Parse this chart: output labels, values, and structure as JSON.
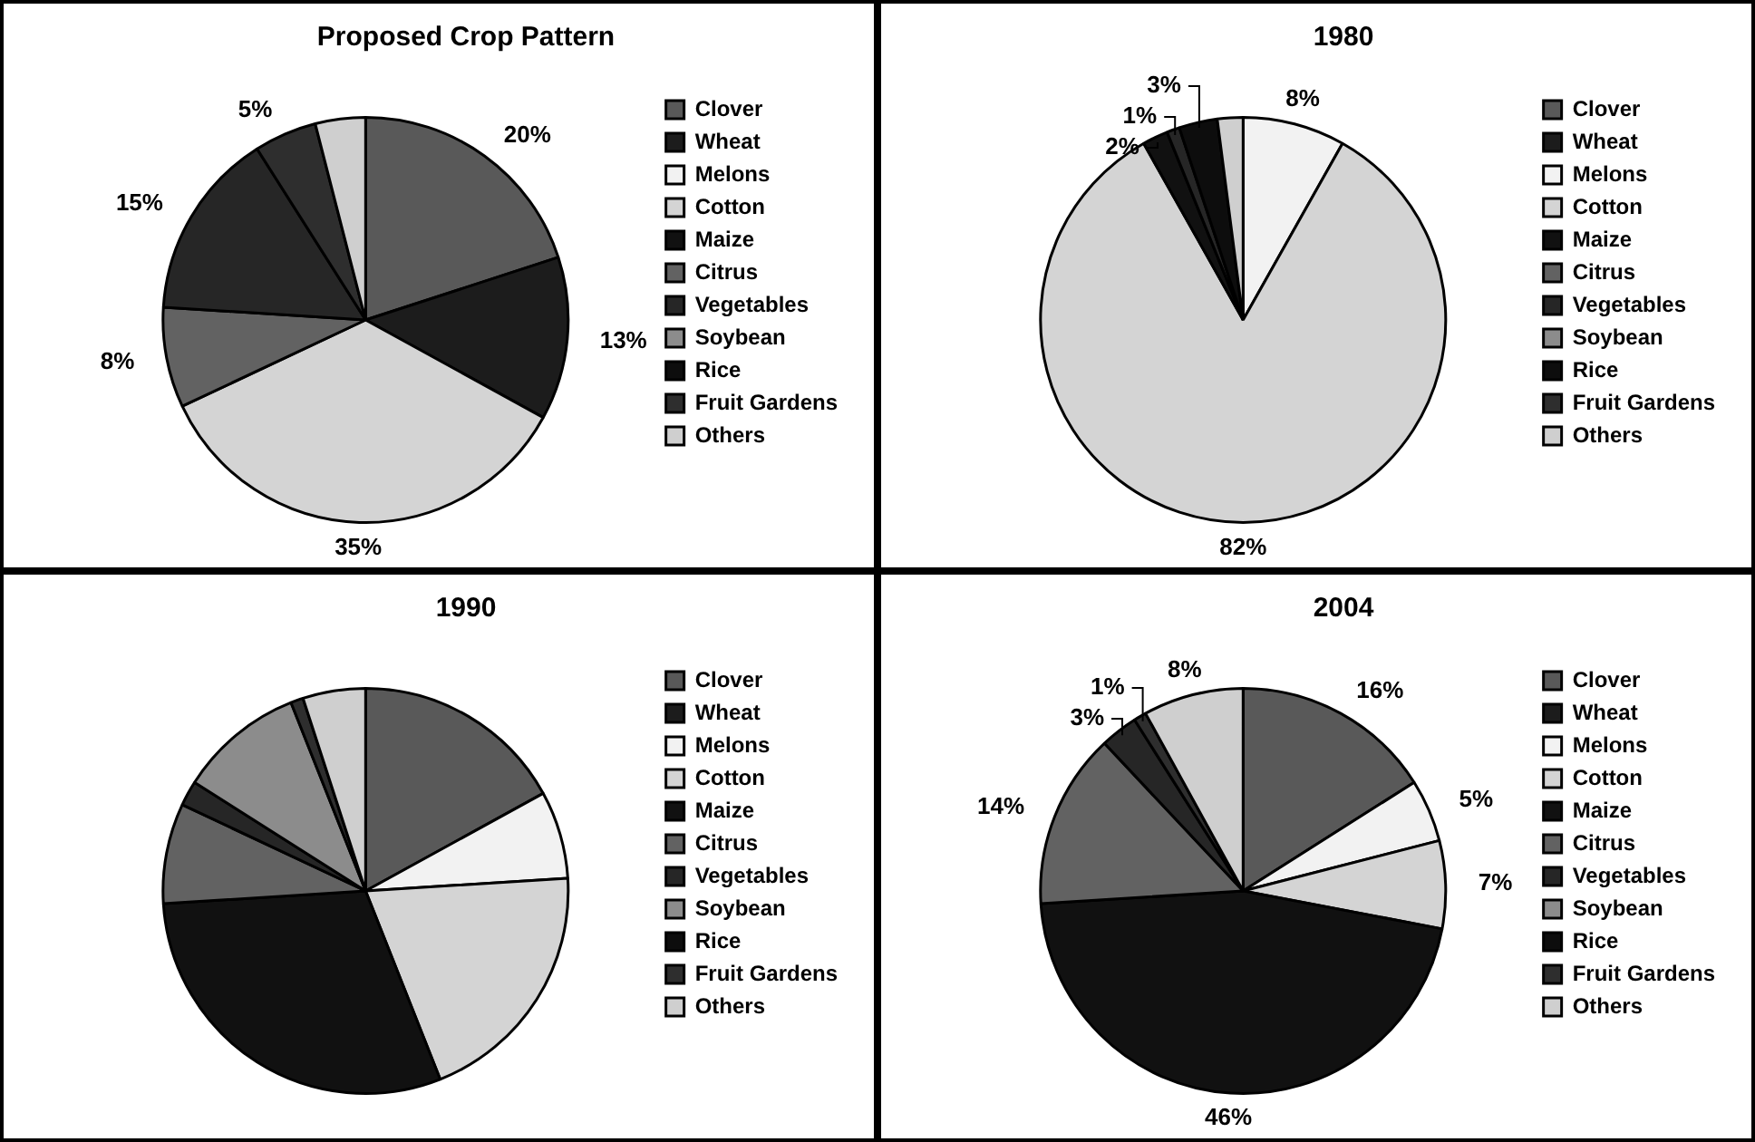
{
  "chart_data": [
    {
      "type": "pie",
      "title": "Proposed Crop Pattern",
      "categories": [
        "Clover",
        "Wheat",
        "Melons",
        "Cotton",
        "Maize",
        "Citrus",
        "Vegetables",
        "Soybean",
        "Rice",
        "Fruit Gardens",
        "Others"
      ],
      "values": [
        20,
        13,
        0,
        35,
        0,
        8,
        15,
        0,
        0,
        5,
        4
      ],
      "value_labels": [
        "20%",
        "13%",
        null,
        "35%",
        null,
        "8%",
        "15%",
        null,
        null,
        "5%",
        null
      ],
      "colors": [
        "#595959",
        "#1c1c1c",
        "#f2f2f2",
        "#d4d4d4",
        "#111111",
        "#626262",
        "#262626",
        "#8c8c8c",
        "#0d0d0d",
        "#2e2e2e",
        "#cfcfcf"
      ],
      "legend": "right"
    },
    {
      "type": "pie",
      "title": "1980",
      "categories": [
        "Clover",
        "Wheat",
        "Melons",
        "Cotton",
        "Maize",
        "Citrus",
        "Vegetables",
        "Soybean",
        "Rice",
        "Fruit Gardens",
        "Others"
      ],
      "values": [
        0,
        0,
        8,
        82,
        2,
        0,
        1,
        0,
        3,
        0,
        2
      ],
      "value_labels": [
        null,
        null,
        "8%",
        "82%",
        "2%",
        null,
        "1%",
        null,
        "3%",
        null,
        null
      ],
      "colors": [
        "#595959",
        "#1c1c1c",
        "#f2f2f2",
        "#d4d4d4",
        "#111111",
        "#626262",
        "#262626",
        "#8c8c8c",
        "#0d0d0d",
        "#2e2e2e",
        "#cfcfcf"
      ],
      "legend": "right"
    },
    {
      "type": "pie",
      "title": "1990",
      "categories": [
        "Clover",
        "Wheat",
        "Melons",
        "Cotton",
        "Maize",
        "Citrus",
        "Vegetables",
        "Soybean",
        "Rice",
        "Fruit Gardens",
        "Others"
      ],
      "values": [
        17,
        0,
        7,
        20,
        30,
        8,
        2,
        10,
        0,
        1,
        5
      ],
      "colors": [
        "#595959",
        "#1c1c1c",
        "#f2f2f2",
        "#d4d4d4",
        "#111111",
        "#626262",
        "#262626",
        "#8c8c8c",
        "#0d0d0d",
        "#2e2e2e",
        "#cfcfcf"
      ],
      "legend": "right"
    },
    {
      "type": "pie",
      "title": "2004",
      "categories": [
        "Clover",
        "Wheat",
        "Melons",
        "Cotton",
        "Maize",
        "Citrus",
        "Vegetables",
        "Soybean",
        "Rice",
        "Fruit Gardens",
        "Others"
      ],
      "values": [
        16,
        0,
        5,
        7,
        46,
        14,
        3,
        0,
        0,
        1,
        8
      ],
      "value_labels": [
        "16%",
        null,
        "5%",
        "7%",
        "46%",
        "14%",
        "3%",
        null,
        null,
        "1%",
        "8%"
      ],
      "colors": [
        "#595959",
        "#1c1c1c",
        "#f2f2f2",
        "#d4d4d4",
        "#111111",
        "#626262",
        "#262626",
        "#8c8c8c",
        "#0d0d0d",
        "#2e2e2e",
        "#cfcfcf"
      ],
      "legend": "right"
    }
  ]
}
